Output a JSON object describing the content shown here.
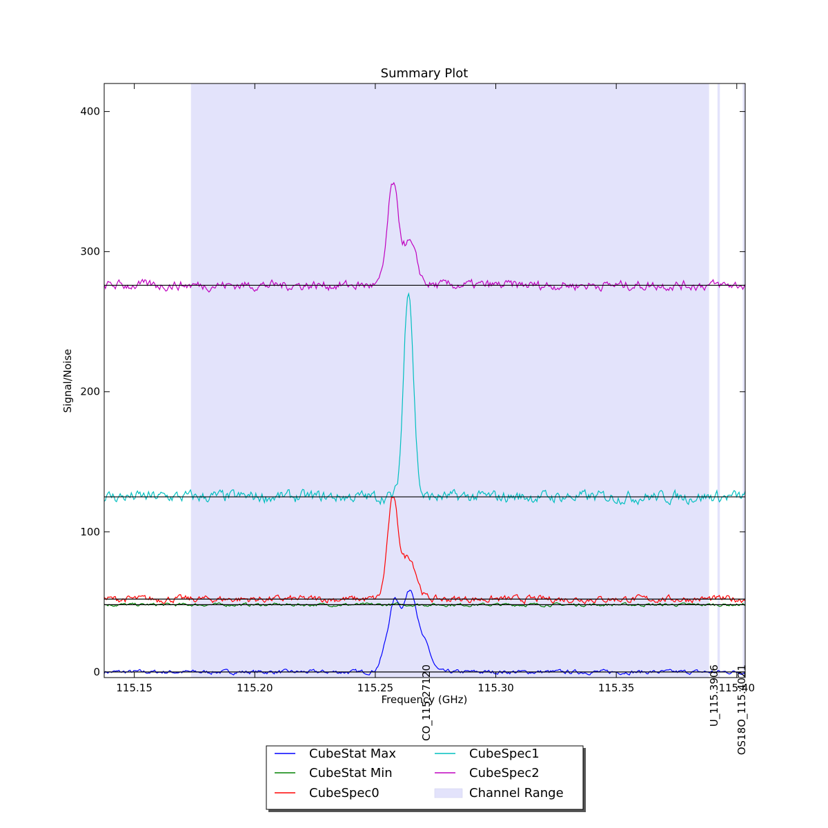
{
  "chart_data": {
    "type": "line",
    "title": "Summary Plot",
    "xlabel": "Frequency (GHz)",
    "ylabel": "Signal/Noise",
    "xlim": [
      115.1375,
      115.4035
    ],
    "ylim": [
      -4,
      420
    ],
    "x_ticks": [
      {
        "value": 115.15,
        "label": "115.15"
      },
      {
        "value": 115.2,
        "label": "115.20"
      },
      {
        "value": 115.25,
        "label": "115.25"
      },
      {
        "value": 115.3,
        "label": "115.30"
      },
      {
        "value": 115.35,
        "label": "115.35"
      },
      {
        "value": 115.4,
        "label": "115.40"
      }
    ],
    "y_ticks": [
      {
        "value": 0,
        "label": "0"
      },
      {
        "value": 100,
        "label": "100"
      },
      {
        "value": 200,
        "label": "200"
      },
      {
        "value": 300,
        "label": "300"
      },
      {
        "value": 400,
        "label": "400"
      }
    ],
    "channel_ranges": [
      [
        115.1735,
        115.3885
      ],
      [
        115.392,
        115.393
      ],
      [
        115.4025,
        115.4055
      ]
    ],
    "baselines": [
      0,
      48,
      52,
      125,
      276
    ],
    "line_markers": [
      {
        "freq": 115.2712,
        "label": "CO_115.27120"
      },
      {
        "freq": 115.3906,
        "label": "U_115.3906"
      },
      {
        "freq": 115.4021,
        "label": "OS18O_115.4021"
      }
    ],
    "series": [
      {
        "name": "CubeStat Max",
        "color": "#0000ff",
        "offset": 0,
        "noise": 1.2,
        "peaks": [
          {
            "center": 115.2555,
            "amp": 22,
            "width": 0.0025
          },
          {
            "center": 115.2585,
            "amp": 37,
            "width": 0.002
          },
          {
            "center": 115.263,
            "amp": 40,
            "width": 0.0022
          },
          {
            "center": 115.266,
            "amp": 34,
            "width": 0.002
          },
          {
            "center": 115.2705,
            "amp": 20,
            "width": 0.0025
          }
        ]
      },
      {
        "name": "CubeStat Min",
        "color": "#008000",
        "offset": 48,
        "noise": 0.9,
        "peaks": []
      },
      {
        "name": "CubeSpec0",
        "color": "#ff0000",
        "offset": 52,
        "noise": 2.0,
        "peaks": [
          {
            "center": 115.2572,
            "amp": 70,
            "width": 0.0022
          },
          {
            "center": 115.264,
            "amp": 30,
            "width": 0.003
          }
        ]
      },
      {
        "name": "CubeSpec1",
        "color": "#00bfbf",
        "offset": 125,
        "noise": 3.5,
        "peaks": [
          {
            "center": 115.2638,
            "amp": 150,
            "width": 0.002
          }
        ]
      },
      {
        "name": "CubeSpec2",
        "color": "#bf00bf",
        "offset": 276,
        "noise": 2.8,
        "peaks": [
          {
            "center": 115.2572,
            "amp": 70,
            "width": 0.0022
          },
          {
            "center": 115.264,
            "amp": 30,
            "width": 0.003
          }
        ]
      }
    ],
    "legend": {
      "placement": "bottom-center",
      "entries": [
        "CubeStat Max",
        "CubeStat Min",
        "CubeSpec0",
        "CubeSpec1",
        "CubeSpec2",
        "Channel Range"
      ]
    },
    "channel_range_color": "#e3e3fb"
  }
}
